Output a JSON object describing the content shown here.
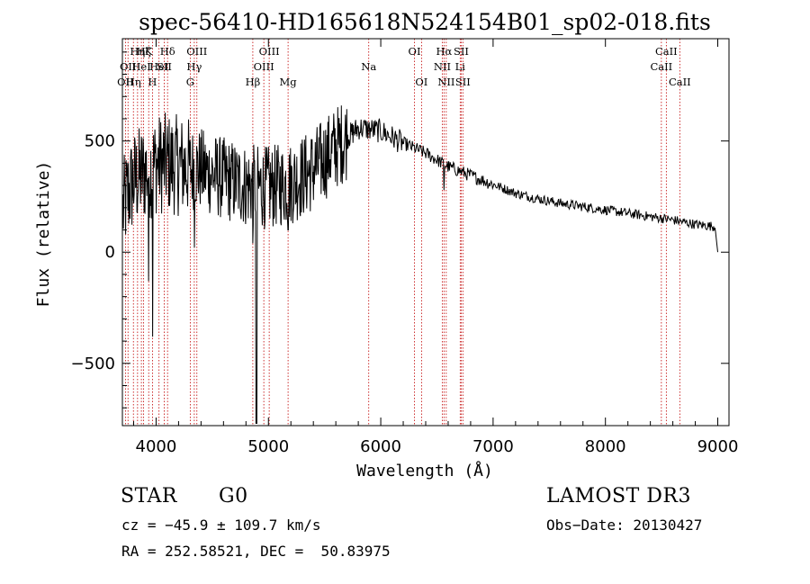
{
  "chart_data": {
    "type": "line",
    "title": "spec-56410-HD165618N524154B01_sp02-018.fits",
    "xlabel": "Wavelength (Å)",
    "ylabel": "Flux (relative)",
    "xlim": [
      3700,
      9100
    ],
    "ylim": [
      -780,
      960
    ],
    "xticks": [
      4000,
      5000,
      6000,
      7000,
      8000,
      9000
    ],
    "xtick_labels": [
      "4000",
      "5000",
      "6000",
      "7000",
      "8000",
      "9000"
    ],
    "yticks": [
      -500,
      0,
      500
    ],
    "ytick_labels": [
      "−500",
      "0",
      "500"
    ],
    "continuum": {
      "x": [
        3700,
        3740,
        3800,
        3900,
        4000,
        4100,
        4200,
        4400,
        4600,
        4800,
        5000,
        5200,
        5400,
        5600,
        5800,
        6000,
        6200,
        6400,
        6600,
        6800,
        7000,
        7200,
        7400,
        7600,
        7800,
        8000,
        8200,
        8400,
        8600,
        8800,
        8980,
        9000
      ],
      "y": [
        180,
        250,
        320,
        360,
        395,
        400,
        390,
        370,
        330,
        300,
        290,
        310,
        370,
        470,
        560,
        545,
        490,
        445,
        385,
        345,
        305,
        265,
        240,
        220,
        205,
        190,
        175,
        160,
        145,
        125,
        115,
        0
      ]
    },
    "absorption_dips": [
      {
        "x": 3934,
        "y": -130
      },
      {
        "x": 3968,
        "y": -380
      },
      {
        "x": 4340,
        "y": 20
      },
      {
        "x": 4861,
        "y": 40
      },
      {
        "x": 4891,
        "y": -770
      },
      {
        "x": 4896,
        "y": -770
      },
      {
        "x": 5175,
        "y": 100
      },
      {
        "x": 6563,
        "y": 280
      }
    ],
    "lines": [
      {
        "x": 3727,
        "label": "OII",
        "row": 3
      },
      {
        "x": 3750,
        "label": "OII",
        "row": 2
      },
      {
        "x": 3798,
        "label": "Hη",
        "row": 3
      },
      {
        "x": 3835,
        "label": "Hη",
        "row": 1
      },
      {
        "x": 3869,
        "label": "HeI",
        "row": 2
      },
      {
        "x": 3889,
        "label": "Hζ",
        "row": 1
      },
      {
        "x": 3934,
        "label": "K",
        "row": 1
      },
      {
        "x": 3968,
        "label": "H",
        "row": 3
      },
      {
        "x": 4026,
        "label": "HeI",
        "row": 2
      },
      {
        "x": 4072,
        "label": "SII",
        "row": 2
      },
      {
        "x": 4102,
        "label": "Hδ",
        "row": 1
      },
      {
        "x": 4304,
        "label": "G",
        "row": 3
      },
      {
        "x": 4340,
        "label": "Hγ",
        "row": 2
      },
      {
        "x": 4363,
        "label": "OIII",
        "row": 1
      },
      {
        "x": 4861,
        "label": "Hβ",
        "row": 3
      },
      {
        "x": 4959,
        "label": "OIII",
        "row": 2
      },
      {
        "x": 5007,
        "label": "OIII",
        "row": 1
      },
      {
        "x": 5175,
        "label": "Mg",
        "row": 3
      },
      {
        "x": 5893,
        "label": "Na",
        "row": 2
      },
      {
        "x": 6300,
        "label": "OI",
        "row": 1
      },
      {
        "x": 6363,
        "label": "OI",
        "row": 3
      },
      {
        "x": 6548,
        "label": "NII",
        "row": 2
      },
      {
        "x": 6563,
        "label": "Hα",
        "row": 1
      },
      {
        "x": 6583,
        "label": "NII",
        "row": 3
      },
      {
        "x": 6707,
        "label": "Li",
        "row": 2
      },
      {
        "x": 6716,
        "label": "SII",
        "row": 1
      },
      {
        "x": 6731,
        "label": "SII",
        "row": 3
      },
      {
        "x": 8498,
        "label": "CaII",
        "row": 2
      },
      {
        "x": 8542,
        "label": "CaII",
        "row": 1
      },
      {
        "x": 8662,
        "label": "CaII",
        "row": 3
      }
    ]
  },
  "info": {
    "object_class": "STAR",
    "subclass": "G0",
    "survey": "LAMOST DR3",
    "redshift": "cz = −45.9 ± 109.7 km/s",
    "obs_date": "Obs−Date: 20130427",
    "coords": "RA = 252.58521, DEC =  50.83975"
  },
  "colors": {
    "spectrum": "#000000",
    "line_markers": "#c00000",
    "axes": "#000000",
    "background": "#ffffff"
  }
}
